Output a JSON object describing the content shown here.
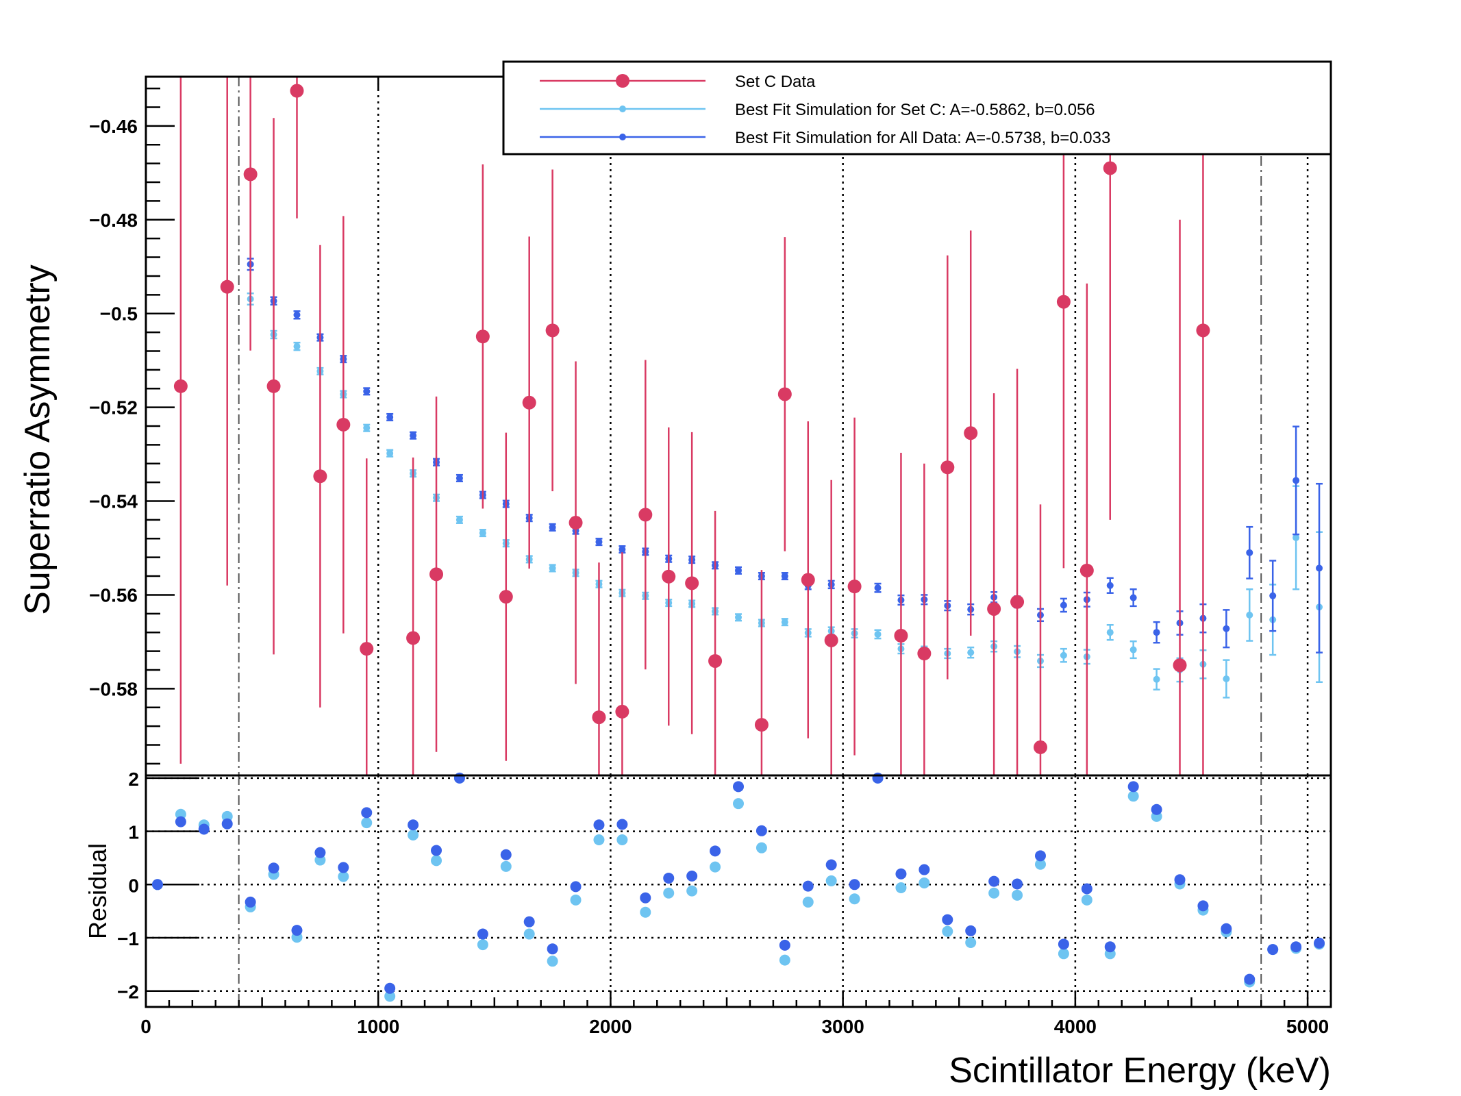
{
  "chart_data": [
    {
      "type": "scatter",
      "panel": "upper",
      "ylabel": "Superratio Asymmetry",
      "xlim": [
        0,
        5100
      ],
      "ylim": [
        -0.5985,
        -0.4495
      ],
      "x_ticks": [
        0,
        1000,
        2000,
        3000,
        4000,
        5000
      ],
      "y_ticks": [
        -0.46,
        -0.48,
        -0.5,
        -0.52,
        -0.54,
        -0.56,
        -0.58
      ],
      "y_tick_labels": [
        "−0.46",
        "−0.48",
        "−0.5",
        "−0.52",
        "−0.54",
        "−0.56",
        "−0.58"
      ],
      "vertical_dotted_lines": [
        1000,
        2000,
        3000,
        4000,
        5000
      ],
      "vertical_dashdot_lines": [
        400,
        4800
      ],
      "legend": {
        "placement": "top-right",
        "entries": [
          {
            "label": "Set C Data",
            "color": "#d93a63"
          },
          {
            "label": "Best Fit Simulation for Set C:  A=-0.5862, b=0.056",
            "color": "#6ec4f1"
          },
          {
            "label": "Best Fit Simulation for All Data:  A=-0.5738, b=0.033",
            "color": "#3a63e8"
          }
        ]
      },
      "series": [
        {
          "name": "Set C Data",
          "color": "#d93a63",
          "marker": "large-circle",
          "x": [
            150,
            350,
            450,
            550,
            650,
            750,
            850,
            950,
            1150,
            1250,
            1450,
            1550,
            1650,
            1750,
            1850,
            1950,
            2050,
            2150,
            2250,
            2350,
            2450,
            2650,
            2750,
            2850,
            2950,
            3050,
            3250,
            3350,
            3450,
            3550,
            3650,
            3750,
            3850,
            3950,
            4050,
            4150,
            4450,
            4550
          ],
          "y": [
            -0.5155,
            -0.4943,
            -0.4703,
            -0.5155,
            -0.4525,
            -0.5347,
            -0.5237,
            -0.5715,
            -0.5692,
            -0.5556,
            -0.5049,
            -0.5604,
            -0.519,
            -0.5036,
            -0.5446,
            -0.5861,
            -0.5849,
            -0.5429,
            -0.5561,
            -0.5575,
            -0.5741,
            -0.5877,
            -0.5172,
            -0.5568,
            -0.5697,
            -0.5582,
            -0.5687,
            -0.5725,
            -0.5328,
            -0.5255,
            -0.563,
            -0.5615,
            -0.5925,
            -0.4975,
            -0.5548,
            -0.469,
            -0.575,
            -0.5036
          ],
          "err": [
            0.0805,
            0.0637,
            0.0376,
            0.0572,
            0.0272,
            0.0493,
            0.0445,
            0.0406,
            0.0385,
            0.0379,
            0.0367,
            0.035,
            0.0354,
            0.0343,
            0.0344,
            0.033,
            0.034,
            0.033,
            0.0318,
            0.0322,
            0.032,
            0.033,
            0.0335,
            0.0338,
            0.0342,
            0.036,
            0.039,
            0.0405,
            0.0452,
            0.0432,
            0.046,
            0.0497,
            0.0518,
            0.0568,
            0.0612,
            0.075,
            0.095,
            0.095
          ]
        },
        {
          "name": "Best Fit Simulation for Set C:  A=-0.5862, b=0.056",
          "color": "#6ec4f1",
          "marker": "small-circle",
          "x": [
            450,
            550,
            650,
            750,
            850,
            950,
            1050,
            1150,
            1250,
            1350,
            1450,
            1550,
            1650,
            1750,
            1850,
            1950,
            2050,
            2150,
            2250,
            2350,
            2450,
            2550,
            2650,
            2750,
            2850,
            2950,
            3050,
            3150,
            3250,
            3350,
            3450,
            3550,
            3650,
            3750,
            3850,
            3950,
            4050,
            4150,
            4250,
            4350,
            4450,
            4550,
            4650,
            4750,
            4850,
            4950,
            5050
          ],
          "y": [
            -0.4969,
            -0.5045,
            -0.507,
            -0.5123,
            -0.5172,
            -0.5244,
            -0.5298,
            -0.5341,
            -0.5393,
            -0.544,
            -0.5468,
            -0.549,
            -0.5524,
            -0.5543,
            -0.5553,
            -0.5577,
            -0.5596,
            -0.5602,
            -0.5617,
            -0.5619,
            -0.5635,
            -0.5648,
            -0.566,
            -0.5658,
            -0.5681,
            -0.5677,
            -0.5682,
            -0.5684,
            -0.5715,
            -0.572,
            -0.5725,
            -0.5723,
            -0.571,
            -0.5721,
            -0.5741,
            -0.5729,
            -0.5732,
            -0.568,
            -0.5717,
            -0.578,
            -0.576,
            -0.5748,
            -0.5779,
            -0.5643,
            -0.5653,
            -0.5478,
            -0.5626
          ],
          "err": [
            0.0012,
            0.0008,
            0.0008,
            0.0007,
            0.0007,
            0.0007,
            0.0007,
            0.0007,
            0.0007,
            0.0007,
            0.0007,
            0.0007,
            0.0007,
            0.0007,
            0.0007,
            0.0007,
            0.0007,
            0.0007,
            0.0007,
            0.0007,
            0.0007,
            0.0007,
            0.0007,
            0.0007,
            0.0008,
            0.0008,
            0.0009,
            0.0009,
            0.001,
            0.001,
            0.001,
            0.0011,
            0.0011,
            0.0012,
            0.0013,
            0.0014,
            0.0015,
            0.0016,
            0.0018,
            0.0022,
            0.0025,
            0.003,
            0.004,
            0.0055,
            0.0075,
            0.011,
            0.016
          ]
        },
        {
          "name": "Best Fit Simulation for All Data:  A=-0.5738, b=0.033",
          "color": "#3a63e8",
          "marker": "small-circle",
          "x": [
            450,
            550,
            650,
            750,
            850,
            950,
            1050,
            1150,
            1250,
            1350,
            1450,
            1550,
            1650,
            1750,
            1850,
            1950,
            2050,
            2150,
            2250,
            2350,
            2450,
            2550,
            2650,
            2750,
            2850,
            2950,
            3050,
            3150,
            3250,
            3350,
            3450,
            3550,
            3650,
            3750,
            3850,
            3950,
            4050,
            4150,
            4250,
            4350,
            4450,
            4550,
            4650,
            4750,
            4850,
            4950,
            5050
          ],
          "y": [
            -0.4895,
            -0.4973,
            -0.5003,
            -0.5051,
            -0.5097,
            -0.5166,
            -0.5221,
            -0.526,
            -0.5317,
            -0.5351,
            -0.5387,
            -0.5406,
            -0.5436,
            -0.5456,
            -0.5463,
            -0.5487,
            -0.5503,
            -0.5508,
            -0.5523,
            -0.5525,
            -0.5537,
            -0.5548,
            -0.556,
            -0.556,
            -0.558,
            -0.5578,
            -0.5582,
            -0.5585,
            -0.5611,
            -0.561,
            -0.5623,
            -0.5631,
            -0.5605,
            -0.5615,
            -0.5643,
            -0.5622,
            -0.561,
            -0.558,
            -0.5606,
            -0.568,
            -0.566,
            -0.565,
            -0.5672,
            -0.551,
            -0.5602,
            -0.5356,
            -0.5543
          ],
          "err": [
            0.0012,
            0.0008,
            0.0008,
            0.0007,
            0.0007,
            0.0007,
            0.0007,
            0.0007,
            0.0007,
            0.0007,
            0.0007,
            0.0007,
            0.0007,
            0.0007,
            0.0007,
            0.0007,
            0.0007,
            0.0007,
            0.0007,
            0.0007,
            0.0007,
            0.0007,
            0.0007,
            0.0007,
            0.0008,
            0.0008,
            0.0009,
            0.0009,
            0.001,
            0.001,
            0.001,
            0.0011,
            0.0011,
            0.0012,
            0.0013,
            0.0014,
            0.0015,
            0.0016,
            0.0018,
            0.0022,
            0.0025,
            0.003,
            0.004,
            0.0055,
            0.0075,
            0.0115,
            0.018
          ]
        }
      ]
    },
    {
      "type": "scatter",
      "panel": "lower",
      "xlabel": "Scintillator Energy (keV)",
      "ylabel": "Residual",
      "xlim": [
        0,
        5100
      ],
      "ylim": [
        -2.3,
        2.05
      ],
      "x_ticks": [
        0,
        1000,
        2000,
        3000,
        4000,
        5000
      ],
      "x_tick_labels": [
        "0",
        "1000",
        "2000",
        "3000",
        "4000",
        "5000"
      ],
      "y_ticks": [
        -2,
        -1,
        0,
        1,
        2
      ],
      "y_tick_labels": [
        "−2",
        "−1",
        "0",
        "1",
        "2"
      ],
      "horizontal_dotted_lines": [
        -2,
        -1,
        0,
        1,
        2
      ],
      "vertical_dashdot_lines": [
        400,
        4800
      ],
      "series": [
        {
          "name": "Set C",
          "color": "#6ec4f1",
          "x": [
            50,
            150,
            250,
            350,
            450,
            550,
            650,
            750,
            850,
            950,
            1050,
            1150,
            1250,
            1350,
            1450,
            1550,
            1650,
            1750,
            1850,
            1950,
            2050,
            2150,
            2250,
            2350,
            2450,
            2550,
            2650,
            2750,
            2850,
            2950,
            3050,
            3150,
            3250,
            3350,
            3450,
            3550,
            3650,
            3750,
            3850,
            3950,
            4050,
            4150,
            4250,
            4350,
            4450,
            4550,
            4650,
            4750,
            4850,
            4950,
            5050
          ],
          "y": [
            0.0,
            1.32,
            1.12,
            1.28,
            -0.42,
            0.19,
            -0.99,
            0.46,
            0.15,
            1.16,
            -2.1,
            0.93,
            0.45,
            2.0,
            -1.13,
            0.34,
            -0.93,
            -1.44,
            -0.29,
            0.84,
            0.84,
            -0.52,
            -0.16,
            -0.12,
            0.33,
            1.52,
            0.69,
            -1.42,
            -0.33,
            0.07,
            -0.27,
            2.0,
            -0.06,
            0.03,
            -0.88,
            -1.09,
            -0.16,
            -0.2,
            0.38,
            -1.3,
            -0.29,
            -1.3,
            1.66,
            1.28,
            0.01,
            -0.48,
            -0.89,
            -1.83,
            -1.22,
            -1.2,
            -1.12
          ]
        },
        {
          "name": "All Data",
          "color": "#3a63e8",
          "x": [
            50,
            150,
            250,
            350,
            450,
            550,
            650,
            750,
            850,
            950,
            1050,
            1150,
            1250,
            1350,
            1450,
            1550,
            1650,
            1750,
            1850,
            1950,
            2050,
            2150,
            2250,
            2350,
            2450,
            2550,
            2650,
            2750,
            2850,
            2950,
            3050,
            3150,
            3250,
            3350,
            3450,
            3550,
            3650,
            3750,
            3850,
            3950,
            4050,
            4150,
            4250,
            4350,
            4450,
            4550,
            4650,
            4750,
            4850,
            4950,
            5050
          ],
          "y": [
            0.0,
            1.18,
            1.04,
            1.14,
            -0.33,
            0.31,
            -0.86,
            0.6,
            0.32,
            1.35,
            -1.95,
            1.12,
            0.64,
            2.0,
            -0.93,
            0.56,
            -0.7,
            -1.21,
            -0.04,
            1.12,
            1.13,
            -0.25,
            0.12,
            0.16,
            0.63,
            1.84,
            1.01,
            -1.14,
            -0.03,
            0.37,
            0.0,
            2.0,
            0.2,
            0.28,
            -0.66,
            -0.87,
            0.06,
            0.01,
            0.54,
            -1.12,
            -0.08,
            -1.17,
            1.84,
            1.41,
            0.09,
            -0.4,
            -0.83,
            -1.78,
            -1.22,
            -1.17,
            -1.1
          ]
        }
      ]
    }
  ]
}
